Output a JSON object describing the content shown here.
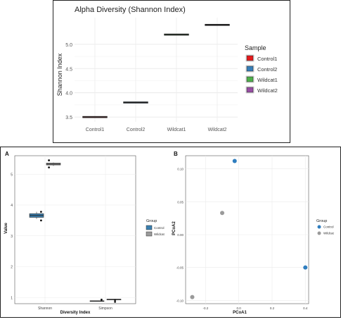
{
  "chart_data": [
    {
      "type": "box",
      "title": "Alpha Diversity (Shannon Index)",
      "xlabel": "",
      "ylabel": "Shannon Index",
      "ylim": [
        3.4,
        5.55
      ],
      "yticks": [
        "3.5",
        "4.0",
        "4.5",
        "5.0"
      ],
      "ytick_values": [
        3.5,
        4.0,
        4.5,
        5.0
      ],
      "categories": [
        "Control1",
        "Control2",
        "Wildcat1",
        "Wildcat2"
      ],
      "values": [
        3.5,
        3.8,
        5.2,
        5.4
      ],
      "legend": {
        "title": "Sample",
        "position": "right",
        "entries": [
          "Control1",
          "Control2",
          "Wildcat1",
          "Wildcat2"
        ],
        "colors": [
          "#e41a1c",
          "#377eb8",
          "#4daf4a",
          "#984ea3"
        ]
      },
      "grid": true
    },
    {
      "type": "box",
      "panel_label": "A",
      "xlabel": "Diversity Index",
      "ylabel": "Value",
      "ylim": [
        0.8,
        5.6
      ],
      "yticks": [
        "1",
        "2",
        "3",
        "4",
        "5"
      ],
      "ytick_values": [
        1,
        2,
        3,
        4,
        5
      ],
      "categories": [
        "Shannon",
        "Simpson"
      ],
      "series": [
        {
          "name": "Control",
          "color": "#3a7fb0",
          "boxes": [
            {
              "category": "Shannon",
              "min": 3.55,
              "q1": 3.6,
              "median": 3.66,
              "q3": 3.72,
              "max": 3.78
            },
            {
              "category": "Simpson",
              "min": 0.88,
              "q1": 0.885,
              "median": 0.89,
              "q3": 0.895,
              "max": 0.9
            }
          ],
          "points": [
            {
              "category": "Shannon",
              "y": 3.78
            },
            {
              "category": "Shannon",
              "y": 3.5
            },
            {
              "category": "Simpson",
              "y": 0.93
            }
          ]
        },
        {
          "name": "Wildcat",
          "color": "#9a9a9a",
          "boxes": [
            {
              "category": "Shannon",
              "min": 5.27,
              "q1": 5.3,
              "median": 5.33,
              "q3": 5.36,
              "max": 5.38
            },
            {
              "category": "Simpson",
              "min": 0.93,
              "q1": 0.935,
              "median": 0.94,
              "q3": 0.945,
              "max": 0.95
            }
          ],
          "points": [
            {
              "category": "Shannon",
              "y": 5.45
            },
            {
              "category": "Shannon",
              "y": 5.22
            },
            {
              "category": "Simpson",
              "y": 0.92
            },
            {
              "category": "Simpson",
              "y": 0.86
            }
          ]
        }
      ],
      "legend": {
        "title": "Group",
        "position": "right",
        "entries": [
          "Control",
          "Wildcat"
        ]
      },
      "grid": true
    },
    {
      "type": "scatter",
      "panel_label": "B",
      "xlabel": "PCoA1",
      "ylabel": "PCoA2",
      "xlim": [
        -0.32,
        0.42
      ],
      "ylim": [
        -0.105,
        0.12
      ],
      "xticks": [
        "-0.2",
        "0.0",
        "0.2",
        "0.4"
      ],
      "xtick_values": [
        -0.2,
        0.0,
        0.2,
        0.4
      ],
      "yticks": [
        "-0.10",
        "-0.05",
        "0.00",
        "0.05",
        "0.10"
      ],
      "ytick_values": [
        -0.1,
        -0.05,
        0.0,
        0.05,
        0.1
      ],
      "series": [
        {
          "name": "Control",
          "color": "#2f7ebf",
          "x": [
            -0.025,
            0.4
          ],
          "y": [
            0.112,
            -0.05
          ]
        },
        {
          "name": "Wildcat",
          "color": "#9a9a9a",
          "x": [
            -0.1,
            -0.28
          ],
          "y": [
            0.033,
            -0.095
          ]
        }
      ],
      "legend": {
        "title": "Group",
        "position": "right",
        "entries": [
          "Control",
          "Wildcat"
        ]
      },
      "grid": true
    }
  ]
}
